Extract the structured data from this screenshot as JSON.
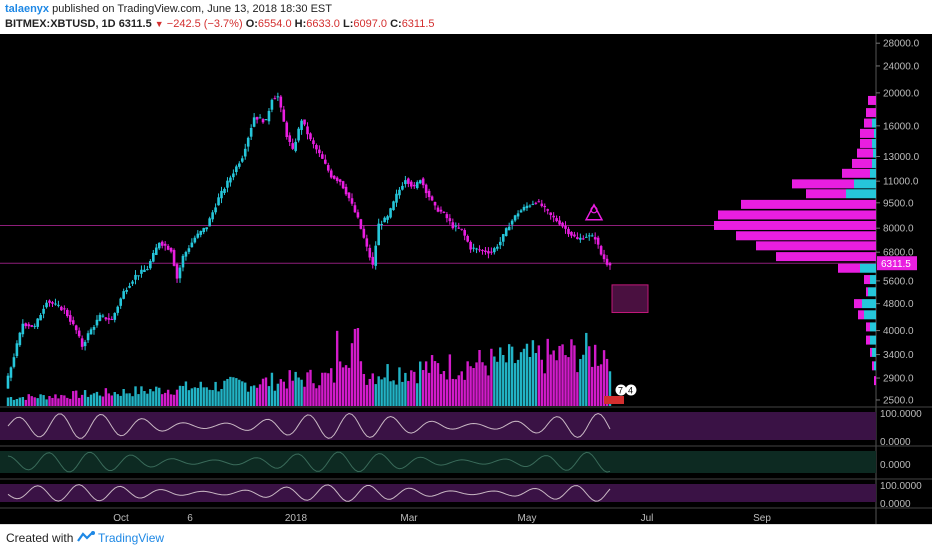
{
  "header": {
    "username": "talaenyx",
    "published_text": "published on TradingView.com, June 13, 2018 18:30 EST",
    "symbol": "BITMEX:XBTUSD, 1D",
    "last": "6311.5",
    "change": "−242.5 (−3.7%)",
    "open_label": "O:",
    "open": "6554.0",
    "high_label": "H:",
    "high": "6633.0",
    "low_label": "L:",
    "low": "6097.0",
    "close_label": "C:",
    "close": "6311.5"
  },
  "footer": {
    "created_with": "Created with",
    "brand": "TradingView"
  },
  "colors": {
    "bull": "#26c6da",
    "bear": "#e91ee0",
    "background": "#000000",
    "osc_fill": "#3a1245",
    "osc_fill2": "#0d2a22"
  },
  "chart_data": {
    "type": "candlestick",
    "y_scale": "log",
    "ylim": [
      2400,
      29000
    ],
    "y_ticks": [
      "28000.0",
      "24000.0",
      "20000.0",
      "16000.0",
      "13000.0",
      "11000.0",
      "9500.0",
      "8000.0",
      "6800.0",
      "5600.0",
      "4800.0",
      "4000.0",
      "3400.0",
      "2900.0",
      "2500.0"
    ],
    "last_price_label": "6311.5",
    "x_ticks": [
      "Oct",
      "6",
      "2018",
      "Mar",
      "May",
      "Jul",
      "Sep"
    ],
    "price_path": [
      [
        0,
        2700
      ],
      [
        6,
        4200
      ],
      [
        10,
        4100
      ],
      [
        14,
        4900
      ],
      [
        20,
        4600
      ],
      [
        24,
        4000
      ],
      [
        26,
        3600
      ],
      [
        28,
        3900
      ],
      [
        32,
        4400
      ],
      [
        36,
        4300
      ],
      [
        40,
        5200
      ],
      [
        44,
        5800
      ],
      [
        48,
        6100
      ],
      [
        52,
        7300
      ],
      [
        56,
        6900
      ],
      [
        58,
        5700
      ],
      [
        60,
        6600
      ],
      [
        64,
        7500
      ],
      [
        68,
        8100
      ],
      [
        72,
        9800
      ],
      [
        76,
        11300
      ],
      [
        80,
        13000
      ],
      [
        84,
        17000
      ],
      [
        88,
        16500
      ],
      [
        90,
        19300
      ],
      [
        92,
        19500
      ],
      [
        95,
        15000
      ],
      [
        97,
        13500
      ],
      [
        100,
        16700
      ],
      [
        103,
        14500
      ],
      [
        106,
        13200
      ],
      [
        110,
        11400
      ],
      [
        113,
        11000
      ],
      [
        116,
        9800
      ],
      [
        119,
        8500
      ],
      [
        122,
        7000
      ],
      [
        124,
        6200
      ],
      [
        126,
        8200
      ],
      [
        129,
        8600
      ],
      [
        132,
        10000
      ],
      [
        135,
        11200
      ],
      [
        138,
        10500
      ],
      [
        140,
        11200
      ],
      [
        142,
        10300
      ],
      [
        145,
        9200
      ],
      [
        148,
        8800
      ],
      [
        151,
        8100
      ],
      [
        154,
        7900
      ],
      [
        157,
        7000
      ],
      [
        160,
        6900
      ],
      [
        164,
        6800
      ],
      [
        167,
        7300
      ],
      [
        170,
        8200
      ],
      [
        173,
        8900
      ],
      [
        176,
        9300
      ],
      [
        179,
        9600
      ],
      [
        181,
        9300
      ],
      [
        184,
        8700
      ],
      [
        187,
        8300
      ],
      [
        190,
        7800
      ],
      [
        193,
        7400
      ],
      [
        196,
        7600
      ],
      [
        199,
        7500
      ],
      [
        201,
        6700
      ],
      [
        203,
        6311.5
      ]
    ],
    "volume_profile": [
      {
        "price": 19000,
        "bull": 0,
        "bear": 8
      },
      {
        "price": 17500,
        "bull": 0,
        "bear": 10
      },
      {
        "price": 16300,
        "bull": 4,
        "bear": 8
      },
      {
        "price": 15200,
        "bull": 2,
        "bear": 14
      },
      {
        "price": 14200,
        "bull": 4,
        "bear": 12
      },
      {
        "price": 13300,
        "bull": 3,
        "bear": 16
      },
      {
        "price": 12400,
        "bull": 4,
        "bear": 20
      },
      {
        "price": 11600,
        "bull": 6,
        "bear": 28
      },
      {
        "price": 10800,
        "bull": 22,
        "bear": 62
      },
      {
        "price": 10100,
        "bull": 30,
        "bear": 40
      },
      {
        "price": 9400,
        "bull": 0,
        "bear": 135
      },
      {
        "price": 8750,
        "bull": 0,
        "bear": 158
      },
      {
        "price": 8150,
        "bull": 0,
        "bear": 162
      },
      {
        "price": 7600,
        "bull": 0,
        "bear": 140
      },
      {
        "price": 7100,
        "bull": 0,
        "bear": 120
      },
      {
        "price": 6600,
        "bull": 0,
        "bear": 100
      },
      {
        "price": 6100,
        "bull": 16,
        "bear": 22
      },
      {
        "price": 5650,
        "bull": 6,
        "bear": 6
      },
      {
        "price": 5200,
        "bull": 8,
        "bear": 2
      },
      {
        "price": 4800,
        "bull": 14,
        "bear": 8
      },
      {
        "price": 4450,
        "bull": 12,
        "bear": 6
      },
      {
        "price": 4100,
        "bull": 6,
        "bear": 4
      },
      {
        "price": 3750,
        "bull": 6,
        "bear": 4
      },
      {
        "price": 3450,
        "bull": 4,
        "bear": 2
      },
      {
        "price": 3150,
        "bull": 2,
        "bear": 2
      },
      {
        "price": 2850,
        "bull": 0,
        "bear": 2
      }
    ],
    "oscillators": [
      {
        "labels": [
          "100.0000",
          "0.0000"
        ]
      },
      {
        "labels": [
          "0.0000"
        ]
      },
      {
        "labels": [
          "100.0000",
          "0.0000"
        ]
      }
    ],
    "event_badges": [
      "7",
      "4"
    ]
  }
}
